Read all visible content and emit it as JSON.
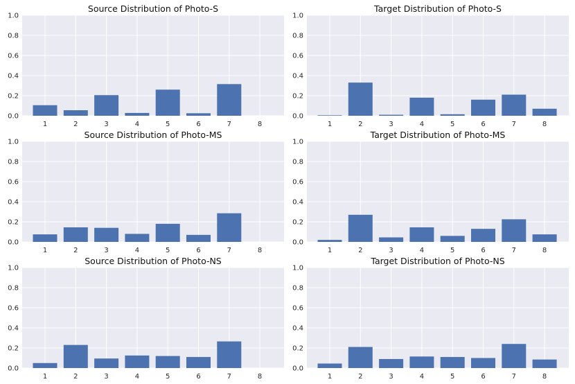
{
  "chart_data": [
    {
      "type": "bar",
      "title": "Source Distribution of Photo-S",
      "categories": [
        "1",
        "2",
        "3",
        "4",
        "5",
        "6",
        "7",
        "8"
      ],
      "values": [
        0.105,
        0.055,
        0.205,
        0.028,
        0.26,
        0.025,
        0.315,
        0.0
      ],
      "ylim": [
        0,
        1.0
      ],
      "yticks": [
        "0.0",
        "0.2",
        "0.4",
        "0.6",
        "0.8",
        "1.0"
      ],
      "xlabel": "",
      "ylabel": "",
      "bar_color": "#4c72b0",
      "grid": true
    },
    {
      "type": "bar",
      "title": "Target Distribution of Photo-S",
      "categories": [
        "1",
        "2",
        "3",
        "4",
        "5",
        "6",
        "7",
        "8"
      ],
      "values": [
        0.005,
        0.33,
        0.01,
        0.18,
        0.015,
        0.16,
        0.21,
        0.07
      ],
      "ylim": [
        0,
        1.0
      ],
      "yticks": [
        "0.0",
        "0.2",
        "0.4",
        "0.6",
        "0.8",
        "1.0"
      ],
      "xlabel": "",
      "ylabel": "",
      "bar_color": "#4c72b0",
      "grid": true
    },
    {
      "type": "bar",
      "title": "Source Distribution of Photo-MS",
      "categories": [
        "1",
        "2",
        "3",
        "4",
        "5",
        "6",
        "7",
        "8"
      ],
      "values": [
        0.075,
        0.145,
        0.14,
        0.08,
        0.18,
        0.07,
        0.285,
        0.0
      ],
      "ylim": [
        0,
        1.0
      ],
      "yticks": [
        "0.0",
        "0.2",
        "0.4",
        "0.6",
        "0.8",
        "1.0"
      ],
      "xlabel": "",
      "ylabel": "",
      "bar_color": "#4c72b0",
      "grid": true
    },
    {
      "type": "bar",
      "title": "Target Distribution of Photo-MS",
      "categories": [
        "1",
        "2",
        "3",
        "4",
        "5",
        "6",
        "7",
        "8"
      ],
      "values": [
        0.02,
        0.27,
        0.045,
        0.145,
        0.06,
        0.13,
        0.225,
        0.075
      ],
      "ylim": [
        0,
        1.0
      ],
      "yticks": [
        "0.0",
        "0.2",
        "0.4",
        "0.6",
        "0.8",
        "1.0"
      ],
      "xlabel": "",
      "ylabel": "",
      "bar_color": "#4c72b0",
      "grid": true
    },
    {
      "type": "bar",
      "title": "Source Distribution of Photo-NS",
      "categories": [
        "1",
        "2",
        "3",
        "4",
        "5",
        "6",
        "7",
        "8"
      ],
      "values": [
        0.05,
        0.23,
        0.095,
        0.125,
        0.12,
        0.11,
        0.265,
        0.0
      ],
      "ylim": [
        0,
        1.0
      ],
      "yticks": [
        "0.0",
        "0.2",
        "0.4",
        "0.6",
        "0.8",
        "1.0"
      ],
      "xlabel": "",
      "ylabel": "",
      "bar_color": "#4c72b0",
      "grid": true
    },
    {
      "type": "bar",
      "title": "Target Distribution of Photo-NS",
      "categories": [
        "1",
        "2",
        "3",
        "4",
        "5",
        "6",
        "7",
        "8"
      ],
      "values": [
        0.045,
        0.21,
        0.09,
        0.115,
        0.11,
        0.1,
        0.24,
        0.085
      ],
      "ylim": [
        0,
        1.0
      ],
      "yticks": [
        "0.0",
        "0.2",
        "0.4",
        "0.6",
        "0.8",
        "1.0"
      ],
      "xlabel": "",
      "ylabel": "",
      "bar_color": "#4c72b0",
      "grid": true
    }
  ]
}
